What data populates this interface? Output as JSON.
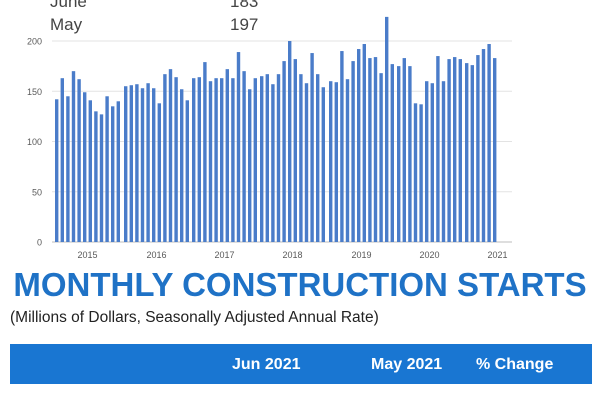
{
  "top_table": {
    "rows": [
      {
        "label": "June",
        "value": "183"
      },
      {
        "label": "May",
        "value": "197"
      }
    ]
  },
  "title": "MONTHLY CONSTRUCTION STARTS",
  "subtitle": "(Millions of Dollars, Seasonally Adjusted Annual Rate)",
  "table_header": {
    "col1": "Jun 2021",
    "col2": "May 2021",
    "col3": "% Change"
  },
  "colors": {
    "bar": "#4a7cc9",
    "title": "#1f72c6",
    "header_band": "#1976d2"
  },
  "chart_data": {
    "type": "bar",
    "ylim": [
      0,
      200
    ],
    "yticks": [
      0,
      50,
      100,
      150,
      200
    ],
    "xtick_labels": [
      "2015",
      "2016",
      "2017",
      "2018",
      "2019",
      "2020",
      "2021"
    ],
    "grid": true,
    "series": [
      {
        "year": "2015",
        "values": [
          142,
          163,
          145,
          170,
          162,
          149,
          141,
          130,
          127,
          145,
          135,
          140
        ]
      },
      {
        "year": "2016",
        "values": [
          155,
          156,
          157,
          153,
          158,
          153,
          138,
          167,
          172,
          164,
          152,
          141
        ]
      },
      {
        "year": "2017",
        "values": [
          163,
          164,
          179,
          160,
          163,
          163,
          172,
          163,
          189,
          170,
          152,
          163
        ]
      },
      {
        "year": "2018",
        "values": [
          165,
          167,
          157,
          167,
          180,
          200,
          182,
          167,
          158,
          188,
          167,
          154
        ]
      },
      {
        "year": "2019",
        "values": [
          160,
          159,
          190,
          162,
          180,
          192,
          197,
          183,
          184,
          168,
          224,
          177
        ]
      },
      {
        "year": "2020",
        "values": [
          175,
          183,
          175,
          138,
          137,
          160,
          158,
          185,
          160,
          182,
          184,
          182
        ]
      },
      {
        "year": "2021",
        "values": [
          178,
          176,
          186,
          192,
          197,
          183
        ]
      }
    ]
  }
}
